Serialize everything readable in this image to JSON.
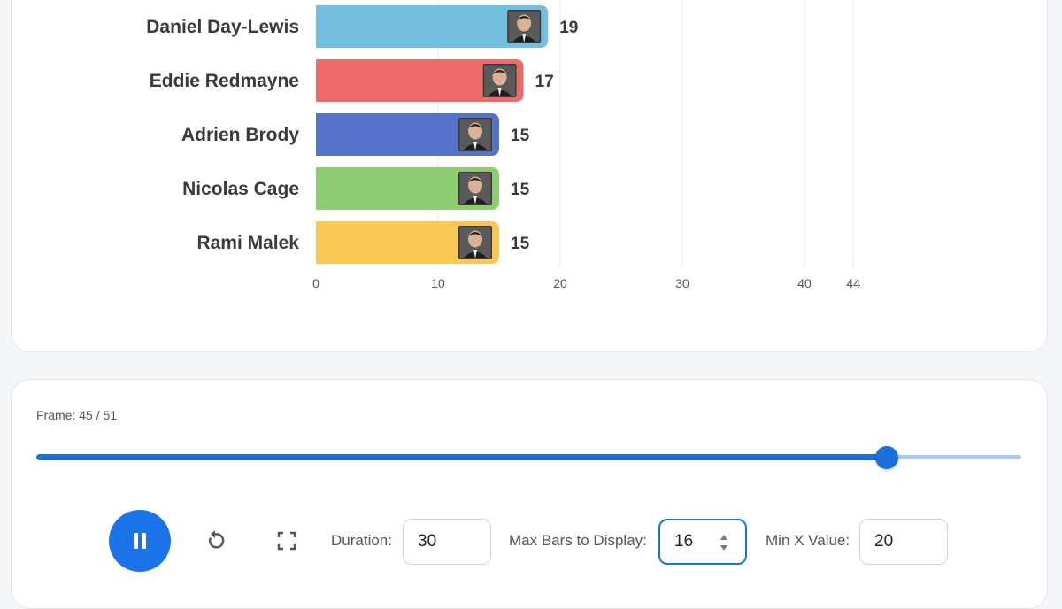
{
  "chart_data": {
    "type": "bar",
    "orientation": "horizontal",
    "categories": [
      "Daniel Day-Lewis",
      "Eddie Redmayne",
      "Adrien Brody",
      "Nicolas Cage",
      "Rami Malek"
    ],
    "values": [
      19,
      17,
      15,
      15,
      15
    ],
    "colors": [
      "#72bfe0",
      "#ee6b6b",
      "#5572c8",
      "#8ecc74",
      "#f8c755"
    ],
    "x_ticks": [
      0,
      10,
      20,
      30,
      40,
      44
    ],
    "xlim": [
      0,
      44
    ],
    "grid": true,
    "bar_images": "actor-photo"
  },
  "controls": {
    "frame_text": "Frame: 45 / 51",
    "frame_current": 45,
    "frame_total": 51,
    "slider_fraction": 0.8633,
    "duration_label": "Duration:",
    "duration_value": "30",
    "max_bars_label": "Max Bars to Display:",
    "max_bars_value": "16",
    "min_x_label": "Min X Value:",
    "min_x_value": "20",
    "play_state": "playing",
    "accent_color": "#1a73e8"
  }
}
